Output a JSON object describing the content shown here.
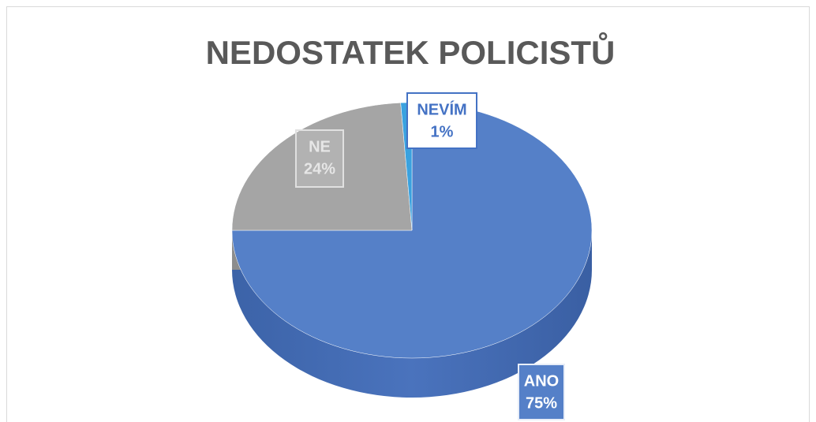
{
  "chart_data": {
    "type": "pie",
    "title": "NEDOSTATEK POLICISTŮ",
    "categories": [
      "ANO",
      "NE",
      "NEVÍM"
    ],
    "values": [
      75,
      24,
      1
    ],
    "value_labels": [
      "75%",
      "24%",
      "1%"
    ],
    "colors": [
      "#5580c8",
      "#a5a5a5",
      "#3aa2df"
    ]
  }
}
